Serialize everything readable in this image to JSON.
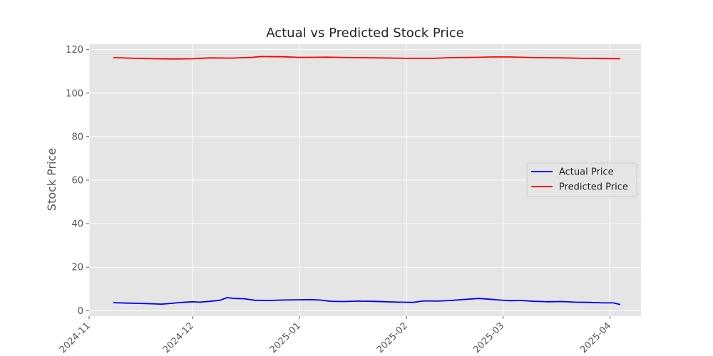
{
  "chart_data": {
    "type": "line",
    "title": "Actual vs Predicted Stock Price",
    "xlabel": "",
    "ylabel": "Stock Price",
    "x_axis": {
      "type": "date",
      "range": [
        "2024-11-01",
        "2025-04-10"
      ],
      "ticks": [
        "2024-11-01",
        "2024-12-01",
        "2025-01-01",
        "2025-02-01",
        "2025-03-01",
        "2025-04-01"
      ],
      "tick_labels": [
        "2024-11",
        "2024-12",
        "2025-01",
        "2025-02",
        "2025-03",
        "2025-04"
      ]
    },
    "y_axis": {
      "range": [
        -2.5,
        122.5
      ],
      "ticks": [
        0,
        20,
        40,
        60,
        80,
        100,
        120
      ],
      "tick_labels": [
        "0",
        "20",
        "40",
        "60",
        "80",
        "100",
        "120"
      ]
    },
    "grid": true,
    "legend_placement": "center-right",
    "series": [
      {
        "name": "Actual Price",
        "color": "#0000ff",
        "points": [
          [
            "2024-11-08",
            3.7
          ],
          [
            "2024-11-12",
            3.5
          ],
          [
            "2024-11-15",
            3.4
          ],
          [
            "2024-11-19",
            3.2
          ],
          [
            "2024-11-22",
            3.0
          ],
          [
            "2024-11-25",
            3.4
          ],
          [
            "2024-11-28",
            3.8
          ],
          [
            "2024-12-01",
            4.1
          ],
          [
            "2024-12-03",
            3.9
          ],
          [
            "2024-12-06",
            4.3
          ],
          [
            "2024-12-09",
            4.8
          ],
          [
            "2024-12-11",
            6.0
          ],
          [
            "2024-12-13",
            5.6
          ],
          [
            "2024-12-16",
            5.5
          ],
          [
            "2024-12-19",
            4.8
          ],
          [
            "2024-12-23",
            4.7
          ],
          [
            "2024-12-27",
            4.9
          ],
          [
            "2024-12-31",
            5.0
          ],
          [
            "2025-01-04",
            5.1
          ],
          [
            "2025-01-07",
            4.9
          ],
          [
            "2025-01-10",
            4.3
          ],
          [
            "2025-01-14",
            4.2
          ],
          [
            "2025-01-18",
            4.4
          ],
          [
            "2025-01-22",
            4.3
          ],
          [
            "2025-01-26",
            4.1
          ],
          [
            "2025-01-30",
            3.9
          ],
          [
            "2025-02-03",
            3.8
          ],
          [
            "2025-02-06",
            4.5
          ],
          [
            "2025-02-10",
            4.4
          ],
          [
            "2025-02-14",
            4.7
          ],
          [
            "2025-02-18",
            5.2
          ],
          [
            "2025-02-22",
            5.6
          ],
          [
            "2025-02-25",
            5.3
          ],
          [
            "2025-02-28",
            4.9
          ],
          [
            "2025-03-03",
            4.6
          ],
          [
            "2025-03-06",
            4.7
          ],
          [
            "2025-03-10",
            4.3
          ],
          [
            "2025-03-14",
            4.1
          ],
          [
            "2025-03-18",
            4.2
          ],
          [
            "2025-03-22",
            3.9
          ],
          [
            "2025-03-26",
            3.8
          ],
          [
            "2025-03-30",
            3.6
          ],
          [
            "2025-04-02",
            3.6
          ],
          [
            "2025-04-04",
            2.8
          ]
        ]
      },
      {
        "name": "Predicted Price",
        "color": "#ff0000",
        "points": [
          [
            "2024-11-08",
            116.3
          ],
          [
            "2024-11-14",
            116.0
          ],
          [
            "2024-11-20",
            115.8
          ],
          [
            "2024-11-26",
            115.7
          ],
          [
            "2024-12-01",
            115.8
          ],
          [
            "2024-12-06",
            116.2
          ],
          [
            "2024-12-12",
            116.1
          ],
          [
            "2024-12-18",
            116.4
          ],
          [
            "2024-12-21",
            116.8
          ],
          [
            "2024-12-27",
            116.7
          ],
          [
            "2025-01-01",
            116.4
          ],
          [
            "2025-01-09",
            116.5
          ],
          [
            "2025-01-16",
            116.3
          ],
          [
            "2025-01-24",
            116.2
          ],
          [
            "2025-02-01",
            116.0
          ],
          [
            "2025-02-09",
            116.0
          ],
          [
            "2025-02-14",
            116.3
          ],
          [
            "2025-02-20",
            116.4
          ],
          [
            "2025-02-26",
            116.6
          ],
          [
            "2025-03-03",
            116.6
          ],
          [
            "2025-03-10",
            116.3
          ],
          [
            "2025-03-18",
            116.2
          ],
          [
            "2025-03-24",
            116.0
          ],
          [
            "2025-03-30",
            115.9
          ],
          [
            "2025-04-04",
            115.8
          ]
        ]
      }
    ]
  }
}
